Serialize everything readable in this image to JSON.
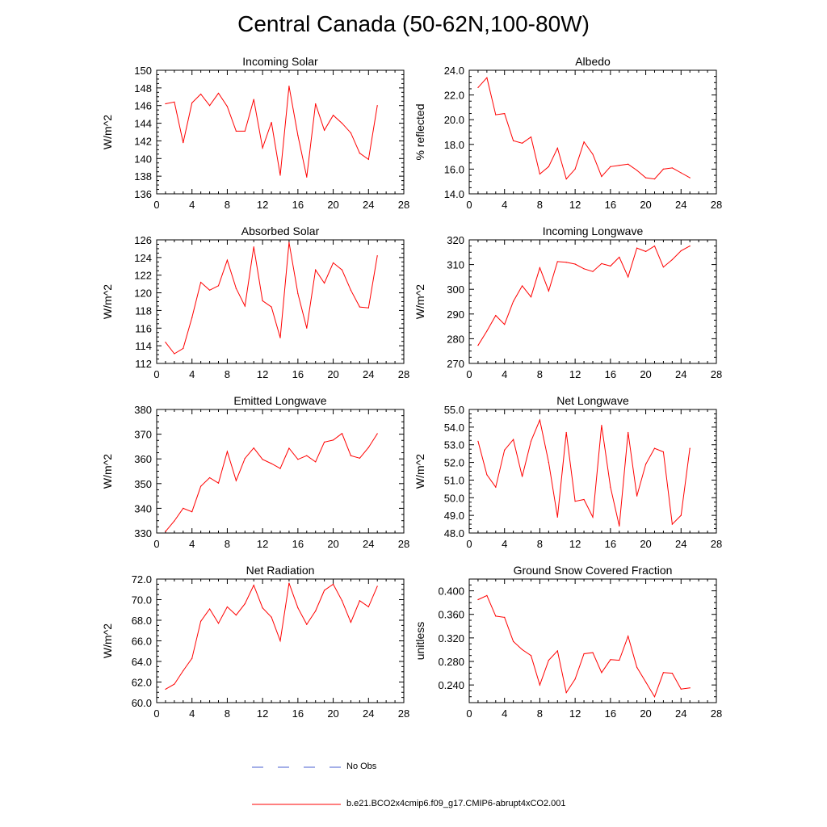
{
  "title": "Central Canada (50-62N,100-80W)",
  "colors": {
    "series": "#ff0000",
    "obs": "#4a5fd0",
    "axis": "#000000"
  },
  "legend": {
    "obs_label": "No Obs",
    "model_label": "b.e21.BCO2x4cmip6.f09_g17.CMIP6-abrupt4xCO2.001"
  },
  "chart_data": [
    {
      "type": "line",
      "title": "Incoming Solar",
      "ylabel": "W/m^2",
      "xlim": [
        0,
        28
      ],
      "ylim": [
        136,
        150
      ],
      "xticks": [
        0,
        4,
        8,
        12,
        16,
        20,
        24,
        28
      ],
      "yticks": [
        136,
        138,
        140,
        142,
        144,
        146,
        148,
        150
      ],
      "ydecimals": 0,
      "x": [
        1,
        2,
        3,
        4,
        5,
        6,
        7,
        8,
        9,
        10,
        11,
        12,
        13,
        14,
        15,
        16,
        17,
        18,
        19,
        20,
        21,
        22,
        23,
        24,
        25
      ],
      "series": [
        {
          "name": "b.e21.BCO2x4cmip6.f09_g17.CMIP6-abrupt4xCO2.001",
          "values": [
            146.2,
            146.4,
            141.8,
            146.3,
            147.3,
            146.0,
            147.4,
            145.9,
            143.1,
            143.1,
            146.7,
            141.2,
            144.1,
            138.1,
            148.2,
            142.6,
            137.9,
            146.2,
            143.2,
            144.9,
            144.0,
            142.9,
            140.6,
            139.9,
            146.0
          ]
        }
      ]
    },
    {
      "type": "line",
      "title": "Albedo",
      "ylabel": "% reflected",
      "xlim": [
        0,
        28
      ],
      "ylim": [
        14,
        24
      ],
      "xticks": [
        0,
        4,
        8,
        12,
        16,
        20,
        24,
        28
      ],
      "yticks": [
        14,
        16,
        18,
        20,
        22,
        24
      ],
      "ydecimals": 1,
      "x": [
        1,
        2,
        3,
        4,
        5,
        6,
        7,
        8,
        9,
        10,
        11,
        12,
        13,
        14,
        15,
        16,
        17,
        18,
        19,
        20,
        21,
        22,
        23,
        24,
        25
      ],
      "series": [
        {
          "name": "b.e21.BCO2x4cmip6.f09_g17.CMIP6-abrupt4xCO2.001",
          "values": [
            22.6,
            23.4,
            20.4,
            20.5,
            18.3,
            18.1,
            18.6,
            15.6,
            16.2,
            17.7,
            15.2,
            16.0,
            18.2,
            17.2,
            15.4,
            16.2,
            16.3,
            16.4,
            15.9,
            15.3,
            15.2,
            16.0,
            16.1,
            15.7,
            15.3
          ]
        }
      ]
    },
    {
      "type": "line",
      "title": "Absorbed Solar",
      "ylabel": "W/m^2",
      "xlim": [
        0,
        28
      ],
      "ylim": [
        112,
        126
      ],
      "xticks": [
        0,
        4,
        8,
        12,
        16,
        20,
        24,
        28
      ],
      "yticks": [
        112,
        114,
        116,
        118,
        120,
        122,
        124,
        126
      ],
      "ydecimals": 0,
      "x": [
        1,
        2,
        3,
        4,
        5,
        6,
        7,
        8,
        9,
        10,
        11,
        12,
        13,
        14,
        15,
        16,
        17,
        18,
        19,
        20,
        21,
        22,
        23,
        24,
        25
      ],
      "series": [
        {
          "name": "b.e21.BCO2x4cmip6.f09_g17.CMIP6-abrupt4xCO2.001",
          "values": [
            114.4,
            113.1,
            113.7,
            117.2,
            121.2,
            120.3,
            120.8,
            123.7,
            120.5,
            118.5,
            125.2,
            119.1,
            118.4,
            114.9,
            125.7,
            119.9,
            116.0,
            122.6,
            121.1,
            123.4,
            122.6,
            120.3,
            118.4,
            118.3,
            124.2
          ]
        }
      ]
    },
    {
      "type": "line",
      "title": "Incoming Longwave",
      "ylabel": "W/m^2",
      "xlim": [
        0,
        28
      ],
      "ylim": [
        270,
        320
      ],
      "xticks": [
        0,
        4,
        8,
        12,
        16,
        20,
        24,
        28
      ],
      "yticks": [
        270,
        280,
        290,
        300,
        310,
        320
      ],
      "ydecimals": 0,
      "x": [
        1,
        2,
        3,
        4,
        5,
        6,
        7,
        8,
        9,
        10,
        11,
        12,
        13,
        14,
        15,
        16,
        17,
        18,
        19,
        20,
        21,
        22,
        23,
        24,
        25
      ],
      "series": [
        {
          "name": "b.e21.BCO2x4cmip6.f09_g17.CMIP6-abrupt4xCO2.001",
          "values": [
            277.3,
            283.1,
            289.4,
            285.8,
            295.1,
            301.4,
            296.9,
            308.7,
            299.3,
            311.2,
            310.9,
            310.2,
            308.3,
            307.2,
            310.4,
            309.4,
            313.0,
            305.0,
            316.7,
            315.3,
            317.5,
            309.0,
            312.0,
            315.6,
            317.5
          ]
        }
      ]
    },
    {
      "type": "line",
      "title": "Emitted Longwave",
      "ylabel": "W/m^2",
      "xlim": [
        0,
        28
      ],
      "ylim": [
        330,
        380
      ],
      "xticks": [
        0,
        4,
        8,
        12,
        16,
        20,
        24,
        28
      ],
      "yticks": [
        330,
        340,
        350,
        360,
        370,
        380
      ],
      "ydecimals": 0,
      "x": [
        1,
        2,
        3,
        4,
        5,
        6,
        7,
        8,
        9,
        10,
        11,
        12,
        13,
        14,
        15,
        16,
        17,
        18,
        19,
        20,
        21,
        22,
        23,
        24,
        25
      ],
      "series": [
        {
          "name": "b.e21.BCO2x4cmip6.f09_g17.CMIP6-abrupt4xCO2.001",
          "values": [
            330.6,
            334.9,
            340.0,
            338.6,
            348.9,
            352.4,
            350.2,
            363.0,
            351.2,
            360.2,
            364.4,
            359.8,
            358.1,
            356.1,
            364.3,
            359.8,
            361.3,
            358.8,
            366.8,
            367.6,
            370.3,
            361.3,
            360.3,
            364.6,
            370.2
          ]
        }
      ]
    },
    {
      "type": "line",
      "title": "Net Longwave",
      "ylabel": "W/m^2",
      "xlim": [
        0,
        28
      ],
      "ylim": [
        48,
        55
      ],
      "xticks": [
        0,
        4,
        8,
        12,
        16,
        20,
        24,
        28
      ],
      "yticks": [
        48,
        49,
        50,
        51,
        52,
        53,
        54,
        55
      ],
      "ydecimals": 1,
      "x": [
        1,
        2,
        3,
        4,
        5,
        6,
        7,
        8,
        9,
        10,
        11,
        12,
        13,
        14,
        15,
        16,
        17,
        18,
        19,
        20,
        21,
        22,
        23,
        24,
        25
      ],
      "series": [
        {
          "name": "b.e21.BCO2x4cmip6.f09_g17.CMIP6-abrupt4xCO2.001",
          "values": [
            53.2,
            51.3,
            50.6,
            52.7,
            53.3,
            51.2,
            53.2,
            54.4,
            52.0,
            48.9,
            53.7,
            49.8,
            49.9,
            48.9,
            54.1,
            50.6,
            48.4,
            53.7,
            50.1,
            51.9,
            52.8,
            52.6,
            48.5,
            49.0,
            52.8
          ]
        }
      ]
    },
    {
      "type": "line",
      "title": "Net Radiation",
      "ylabel": "W/m^2",
      "xlim": [
        0,
        28
      ],
      "ylim": [
        60,
        72
      ],
      "xticks": [
        0,
        4,
        8,
        12,
        16,
        20,
        24,
        28
      ],
      "yticks": [
        60,
        62,
        64,
        66,
        68,
        70,
        72
      ],
      "ydecimals": 1,
      "x": [
        1,
        2,
        3,
        4,
        5,
        6,
        7,
        8,
        9,
        10,
        11,
        12,
        13,
        14,
        15,
        16,
        17,
        18,
        19,
        20,
        21,
        22,
        23,
        24,
        25
      ],
      "series": [
        {
          "name": "b.e21.BCO2x4cmip6.f09_g17.CMIP6-abrupt4xCO2.001",
          "values": [
            61.3,
            61.8,
            63.1,
            64.3,
            67.9,
            69.1,
            67.7,
            69.3,
            68.5,
            69.6,
            71.4,
            69.2,
            68.3,
            66.0,
            71.6,
            69.2,
            67.6,
            68.9,
            70.9,
            71.5,
            69.9,
            67.8,
            69.9,
            69.3,
            71.3
          ]
        }
      ]
    },
    {
      "type": "line",
      "title": "Ground Snow Covered Fraction",
      "ylabel": "unitless",
      "xlim": [
        0,
        28
      ],
      "ylim": [
        0.21,
        0.42
      ],
      "xticks": [
        0,
        4,
        8,
        12,
        16,
        20,
        24,
        28
      ],
      "yticks": [
        0.24,
        0.28,
        0.32,
        0.36,
        0.4
      ],
      "ydecimals": 3,
      "x": [
        1,
        2,
        3,
        4,
        5,
        6,
        7,
        8,
        9,
        10,
        11,
        12,
        13,
        14,
        15,
        16,
        17,
        18,
        19,
        20,
        21,
        22,
        23,
        24,
        25
      ],
      "series": [
        {
          "name": "b.e21.BCO2x4cmip6.f09_g17.CMIP6-abrupt4xCO2.001",
          "values": [
            0.385,
            0.392,
            0.357,
            0.355,
            0.314,
            0.3,
            0.29,
            0.24,
            0.282,
            0.298,
            0.227,
            0.25,
            0.293,
            0.295,
            0.261,
            0.283,
            0.282,
            0.323,
            0.27,
            0.245,
            0.22,
            0.261,
            0.26,
            0.233,
            0.235
          ]
        }
      ]
    }
  ]
}
